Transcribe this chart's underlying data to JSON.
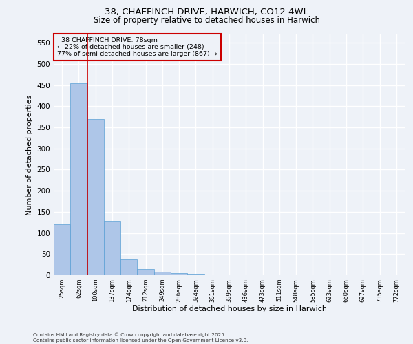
{
  "title_line1": "38, CHAFFINCH DRIVE, HARWICH, CO12 4WL",
  "title_line2": "Size of property relative to detached houses in Harwich",
  "xlabel": "Distribution of detached houses by size in Harwich",
  "ylabel": "Number of detached properties",
  "categories": [
    "25sqm",
    "62sqm",
    "100sqm",
    "137sqm",
    "174sqm",
    "212sqm",
    "249sqm",
    "286sqm",
    "324sqm",
    "361sqm",
    "399sqm",
    "436sqm",
    "473sqm",
    "511sqm",
    "548sqm",
    "585sqm",
    "623sqm",
    "660sqm",
    "697sqm",
    "735sqm",
    "772sqm"
  ],
  "values": [
    120,
    455,
    370,
    128,
    37,
    15,
    8,
    5,
    4,
    0,
    1,
    0,
    1,
    0,
    1,
    0,
    0,
    0,
    0,
    0,
    1
  ],
  "bar_color": "#aec6e8",
  "bar_edge_color": "#5a9fd4",
  "marker_label": "38 CHAFFINCH DRIVE: 78sqm",
  "pct_smaller": "22% of detached houses are smaller (248)",
  "pct_larger": "77% of semi-detached houses are larger (867)",
  "annotation_box_color": "#cc0000",
  "vline_color": "#cc0000",
  "ylim": [
    0,
    570
  ],
  "yticks": [
    0,
    50,
    100,
    150,
    200,
    250,
    300,
    350,
    400,
    450,
    500,
    550
  ],
  "footer": "Contains HM Land Registry data © Crown copyright and database right 2025.\nContains public sector information licensed under the Open Government Licence v3.0.",
  "background_color": "#eef2f8",
  "grid_color": "#ffffff"
}
